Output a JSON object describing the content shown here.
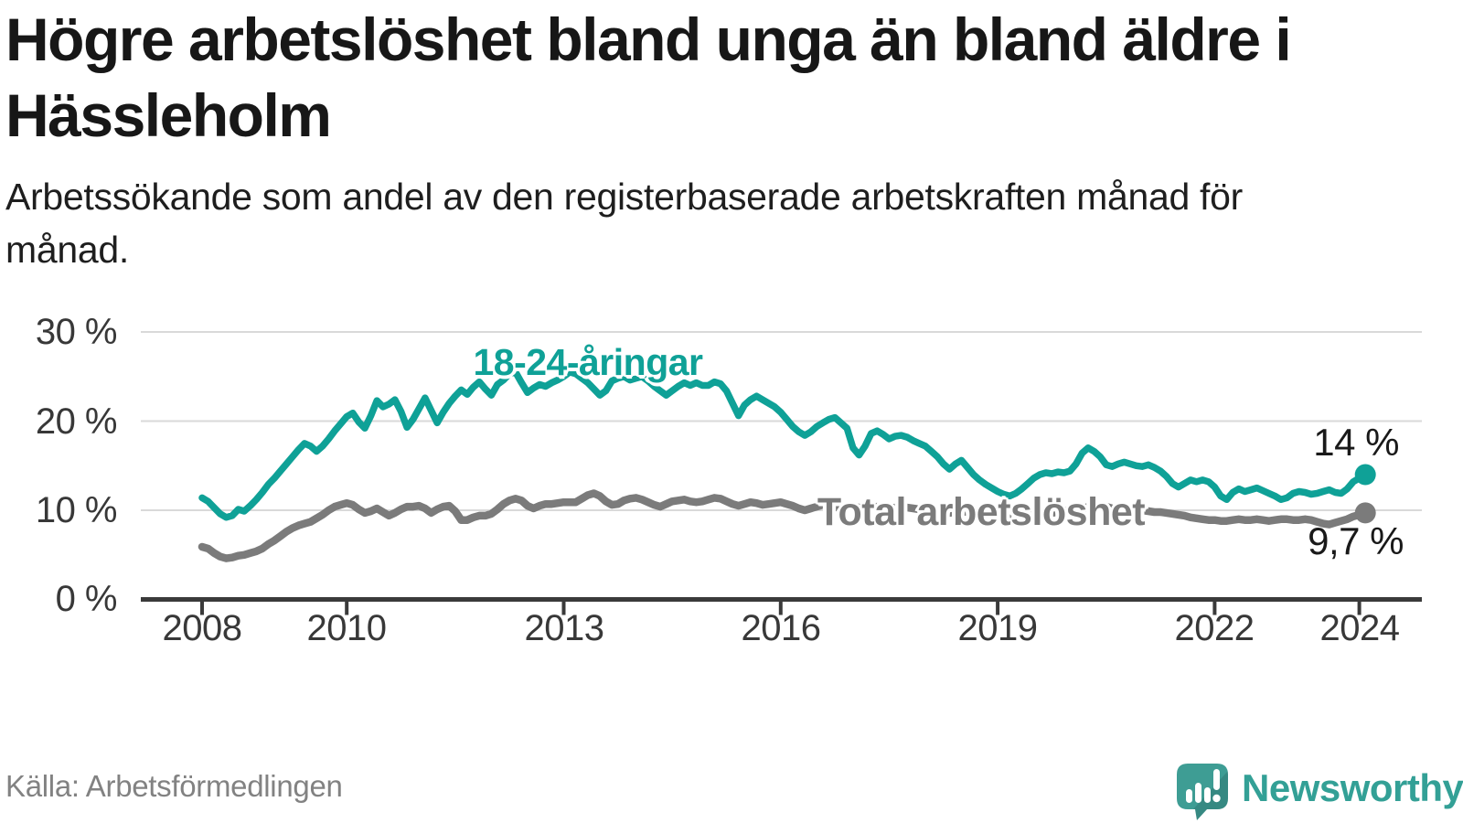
{
  "page": {
    "title": "Högre arbetslöshet bland unga än bland äldre i Hässleholm",
    "subtitle": "Arbetssökande som andel av den registerbaserade arbetskraften månad för månad.",
    "source": "Källa: Arbetsförmedlingen",
    "brand": {
      "name": "Newsworthy",
      "icon": "newsworthy-speech-bubble-bar-chart-icon",
      "color": "#3E9D94"
    }
  },
  "chart_data": {
    "type": "line",
    "title": "Högre arbetslöshet bland unga än bland äldre i Hässleholm",
    "subtitle": "Arbetssökande som andel av den registerbaserade arbetskraften månad för månad.",
    "unit": "%",
    "frequency": "monthly",
    "x_start": "2008-01",
    "x_end": "2024-02",
    "x_tick_labels": [
      "2008",
      "2010",
      "2013",
      "2016",
      "2019",
      "2022",
      "2024"
    ],
    "y_ticks": [
      {
        "value": 0,
        "label": "0 %"
      },
      {
        "value": 10,
        "label": "10 %"
      },
      {
        "value": 20,
        "label": "20 %"
      },
      {
        "value": 30,
        "label": "30 %"
      }
    ],
    "ylim": [
      0,
      32
    ],
    "grid": "horizontal",
    "legend": "inline-labels",
    "source": "Källa: Arbetsförmedlingen",
    "series": [
      {
        "name": "18-24-åringar",
        "color": "#0FA197",
        "end_value_label": "14 %",
        "end_value": 14.0,
        "values": [
          11.4,
          11.0,
          10.3,
          9.6,
          9.2,
          9.4,
          10.1,
          9.9,
          10.5,
          11.2,
          12.0,
          12.9,
          13.6,
          14.4,
          15.2,
          16.0,
          16.8,
          17.5,
          17.2,
          16.6,
          17.2,
          18.0,
          18.9,
          19.7,
          20.5,
          20.9,
          19.9,
          19.2,
          20.6,
          22.3,
          21.6,
          21.9,
          22.4,
          21.1,
          19.3,
          20.2,
          21.4,
          22.6,
          21.2,
          19.8,
          21.0,
          22.0,
          22.8,
          23.5,
          23.0,
          23.8,
          24.4,
          23.6,
          22.9,
          24.1,
          24.6,
          25.3,
          25.5,
          24.3,
          23.2,
          23.7,
          24.1,
          23.9,
          24.3,
          24.6,
          25.0,
          25.5,
          25.3,
          24.8,
          24.3,
          23.6,
          22.9,
          23.4,
          24.5,
          24.8,
          25.0,
          24.6,
          24.8,
          25.0,
          24.5,
          23.9,
          23.4,
          22.9,
          23.4,
          23.9,
          24.3,
          24.0,
          24.3,
          24.0,
          24.0,
          24.4,
          24.2,
          23.4,
          22.0,
          20.6,
          21.8,
          22.4,
          22.8,
          22.4,
          22.0,
          21.6,
          21.0,
          20.2,
          19.4,
          18.8,
          18.4,
          18.8,
          19.4,
          19.8,
          20.2,
          20.4,
          19.8,
          19.2,
          17.0,
          16.2,
          17.2,
          18.6,
          18.9,
          18.5,
          18.0,
          18.3,
          18.4,
          18.2,
          17.8,
          17.5,
          17.2,
          16.6,
          16.0,
          15.2,
          14.6,
          15.2,
          15.6,
          14.8,
          14.0,
          13.4,
          12.9,
          12.5,
          12.1,
          11.8,
          11.6,
          11.9,
          12.4,
          13.0,
          13.6,
          14.0,
          14.2,
          14.1,
          14.3,
          14.2,
          14.4,
          15.2,
          16.4,
          17.0,
          16.6,
          16.0,
          15.1,
          14.9,
          15.2,
          15.4,
          15.2,
          15.0,
          14.9,
          15.1,
          14.8,
          14.4,
          13.8,
          13.0,
          12.6,
          13.0,
          13.4,
          13.2,
          13.4,
          13.2,
          12.6,
          11.6,
          11.2,
          12.0,
          12.4,
          12.1,
          12.3,
          12.5,
          12.2,
          11.9,
          11.6,
          11.2,
          11.4,
          11.9,
          12.1,
          12.0,
          11.8,
          11.9,
          12.1,
          12.3,
          12.0,
          11.9,
          12.4,
          13.2,
          13.6,
          14.0
        ]
      },
      {
        "name": "Total arbetslöshet",
        "color": "#7B7B7B",
        "end_value_label": "9,7 %",
        "end_value": 9.7,
        "values": [
          5.9,
          5.7,
          5.2,
          4.8,
          4.6,
          4.7,
          4.9,
          5.0,
          5.2,
          5.4,
          5.7,
          6.2,
          6.6,
          7.1,
          7.6,
          8.0,
          8.3,
          8.5,
          8.7,
          9.1,
          9.5,
          10.0,
          10.4,
          10.6,
          10.8,
          10.6,
          10.1,
          9.7,
          9.9,
          10.2,
          9.8,
          9.4,
          9.7,
          10.1,
          10.4,
          10.4,
          10.5,
          10.2,
          9.7,
          10.1,
          10.4,
          10.5,
          9.9,
          8.9,
          8.9,
          9.2,
          9.4,
          9.4,
          9.6,
          10.1,
          10.7,
          11.1,
          11.3,
          11.1,
          10.5,
          10.2,
          10.5,
          10.7,
          10.7,
          10.8,
          10.9,
          10.9,
          10.9,
          11.3,
          11.7,
          11.9,
          11.6,
          11.0,
          10.6,
          10.7,
          11.1,
          11.3,
          11.4,
          11.2,
          10.9,
          10.6,
          10.4,
          10.7,
          11.0,
          11.1,
          11.2,
          11.0,
          10.9,
          11.0,
          11.2,
          11.4,
          11.3,
          11.0,
          10.7,
          10.5,
          10.7,
          10.9,
          10.8,
          10.6,
          10.7,
          10.8,
          10.9,
          10.7,
          10.5,
          10.2,
          10.0,
          10.2,
          10.4,
          10.6,
          10.5,
          10.3,
          10.4,
          10.5,
          10.4,
          10.3,
          10.2,
          10.3,
          10.4,
          10.3,
          10.2,
          10.3,
          10.4,
          10.3,
          10.2,
          10.1,
          10.1,
          10.0,
          9.9,
          9.8,
          9.7,
          9.8,
          9.9,
          9.8,
          9.7,
          9.6,
          9.7,
          9.8,
          9.8,
          9.7,
          9.6,
          9.5,
          9.5,
          9.6,
          9.7,
          9.7,
          9.6,
          9.7,
          9.8,
          9.9,
          10.0,
          9.9,
          10.1,
          10.4,
          10.6,
          10.5,
          10.4,
          10.2,
          10.1,
          10.0,
          9.9,
          10.0,
          10.0,
          9.9,
          9.8,
          9.8,
          9.7,
          9.6,
          9.5,
          9.4,
          9.2,
          9.1,
          9.0,
          8.9,
          8.9,
          8.8,
          8.8,
          8.9,
          9.0,
          8.9,
          8.9,
          9.0,
          8.9,
          8.8,
          8.9,
          9.0,
          9.0,
          8.9,
          8.9,
          9.0,
          8.9,
          8.7,
          8.5,
          8.4,
          8.6,
          8.8,
          9.0,
          9.3,
          9.5,
          9.7
        ]
      }
    ]
  }
}
